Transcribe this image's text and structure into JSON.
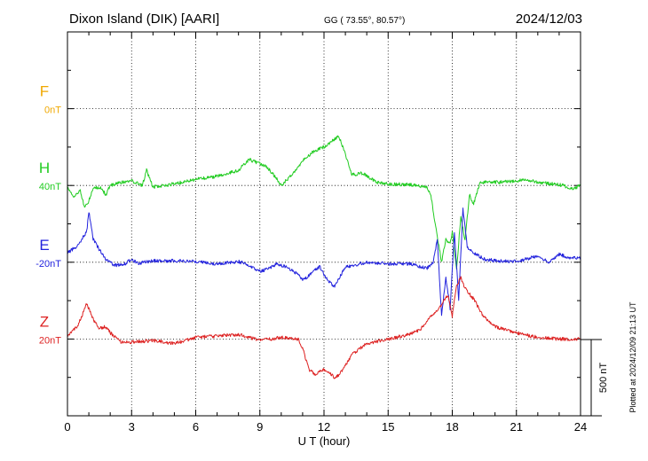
{
  "chart_data": {
    "type": "line",
    "title": "Dixon Island (DIK)  [AARI]",
    "coords": "GG ( 73.55°,  80.57°)",
    "date": "2024/12/03",
    "xlabel": "U T (hour)",
    "xlim": [
      0,
      24
    ],
    "x_ticks": [
      "0",
      "3",
      "6",
      "9",
      "12",
      "15",
      "18",
      "21",
      "24"
    ],
    "scale_label": "500 nT",
    "footer": "Plotted at 2024/12/09 21:13 UT",
    "components": [
      {
        "name": "F",
        "baseline": "0nT",
        "color": "#f0a800",
        "values": []
      },
      {
        "name": "H",
        "baseline": "40nT",
        "color": "#22cc22",
        "values": [
          [
            0,
            -10
          ],
          [
            0.3,
            -75
          ],
          [
            0.6,
            -30
          ],
          [
            0.8,
            -150
          ],
          [
            1.0,
            -100
          ],
          [
            1.2,
            -20
          ],
          [
            1.5,
            -10
          ],
          [
            1.8,
            -60
          ],
          [
            2.0,
            0
          ],
          [
            2.5,
            20
          ],
          [
            3.0,
            30
          ],
          [
            3.5,
            0
          ],
          [
            3.7,
            100
          ],
          [
            4.0,
            -10
          ],
          [
            4.5,
            0
          ],
          [
            5,
            10
          ],
          [
            6,
            40
          ],
          [
            7,
            60
          ],
          [
            8,
            100
          ],
          [
            8.5,
            170
          ],
          [
            9,
            140
          ],
          [
            9.3,
            120
          ],
          [
            9.6,
            80
          ],
          [
            10,
            0
          ],
          [
            10.5,
            70
          ],
          [
            11,
            160
          ],
          [
            11.5,
            220
          ],
          [
            12,
            250
          ],
          [
            12.3,
            280
          ],
          [
            12.7,
            320
          ],
          [
            13,
            200
          ],
          [
            13.3,
            70
          ],
          [
            13.8,
            80
          ],
          [
            14.5,
            20
          ],
          [
            15,
            10
          ],
          [
            16,
            5
          ],
          [
            16.8,
            -10
          ],
          [
            17.0,
            -60
          ],
          [
            17.2,
            -250
          ],
          [
            17.5,
            -500
          ],
          [
            17.7,
            -350
          ],
          [
            17.9,
            -380
          ],
          [
            18.0,
            -300
          ],
          [
            18.2,
            -550
          ],
          [
            18.4,
            -200
          ],
          [
            18.6,
            -360
          ],
          [
            18.8,
            -60
          ],
          [
            19,
            -120
          ],
          [
            19.3,
            20
          ],
          [
            20,
            20
          ],
          [
            21,
            30
          ],
          [
            21.5,
            40
          ],
          [
            22,
            20
          ],
          [
            23,
            5
          ],
          [
            23.7,
            -20
          ],
          [
            24,
            0
          ]
        ]
      },
      {
        "name": "E",
        "baseline": "-20nT",
        "color": "#2222dd",
        "values": [
          [
            0,
            60
          ],
          [
            0.5,
            110
          ],
          [
            0.9,
            200
          ],
          [
            1.0,
            330
          ],
          [
            1.2,
            150
          ],
          [
            1.5,
            80
          ],
          [
            1.8,
            20
          ],
          [
            2.2,
            -20
          ],
          [
            2.7,
            -10
          ],
          [
            3.0,
            20
          ],
          [
            3.3,
            -10
          ],
          [
            3.5,
            0
          ],
          [
            4,
            10
          ],
          [
            5,
            10
          ],
          [
            6,
            5
          ],
          [
            7,
            -10
          ],
          [
            8,
            5
          ],
          [
            8.5,
            -20
          ],
          [
            9,
            -60
          ],
          [
            9.4,
            -40
          ],
          [
            9.8,
            -10
          ],
          [
            10.2,
            -30
          ],
          [
            10.8,
            -80
          ],
          [
            11,
            -120
          ],
          [
            11.5,
            -60
          ],
          [
            11.8,
            -30
          ],
          [
            12.0,
            -80
          ],
          [
            12.2,
            -120
          ],
          [
            12.5,
            -160
          ],
          [
            12.8,
            -80
          ],
          [
            13,
            -30
          ],
          [
            14,
            0
          ],
          [
            15,
            -10
          ],
          [
            16,
            -10
          ],
          [
            16.8,
            -40
          ],
          [
            17.1,
            0
          ],
          [
            17.3,
            150
          ],
          [
            17.5,
            -350
          ],
          [
            17.7,
            -100
          ],
          [
            17.9,
            -300
          ],
          [
            18.1,
            200
          ],
          [
            18.3,
            -240
          ],
          [
            18.5,
            350
          ],
          [
            18.7,
            100
          ],
          [
            19,
            60
          ],
          [
            19.5,
            20
          ],
          [
            20,
            10
          ],
          [
            21,
            5
          ],
          [
            22,
            40
          ],
          [
            22.5,
            0
          ],
          [
            23,
            50
          ],
          [
            23.5,
            30
          ],
          [
            24,
            30
          ]
        ]
      },
      {
        "name": "Z",
        "baseline": "20nT",
        "color": "#dd2222",
        "values": [
          [
            0,
            20
          ],
          [
            0.5,
            90
          ],
          [
            0.9,
            230
          ],
          [
            1.2,
            130
          ],
          [
            1.5,
            70
          ],
          [
            1.8,
            80
          ],
          [
            2.0,
            40
          ],
          [
            2.5,
            -20
          ],
          [
            3,
            -20
          ],
          [
            4,
            -10
          ],
          [
            5,
            -30
          ],
          [
            6,
            10
          ],
          [
            7,
            20
          ],
          [
            8,
            30
          ],
          [
            9,
            -10
          ],
          [
            9.5,
            0
          ],
          [
            10,
            10
          ],
          [
            10.8,
            0
          ],
          [
            11,
            -60
          ],
          [
            11.3,
            -200
          ],
          [
            11.6,
            -230
          ],
          [
            12,
            -200
          ],
          [
            12.3,
            -220
          ],
          [
            12.5,
            -260
          ],
          [
            12.9,
            -200
          ],
          [
            13.3,
            -100
          ],
          [
            14,
            -30
          ],
          [
            15,
            0
          ],
          [
            16,
            30
          ],
          [
            16.5,
            60
          ],
          [
            17.0,
            150
          ],
          [
            17.4,
            200
          ],
          [
            17.8,
            290
          ],
          [
            18.0,
            150
          ],
          [
            18.2,
            350
          ],
          [
            18.4,
            400
          ],
          [
            18.6,
            330
          ],
          [
            19,
            260
          ],
          [
            19.5,
            140
          ],
          [
            20,
            80
          ],
          [
            21,
            40
          ],
          [
            22,
            10
          ],
          [
            23,
            0
          ],
          [
            24,
            0
          ]
        ]
      }
    ]
  }
}
